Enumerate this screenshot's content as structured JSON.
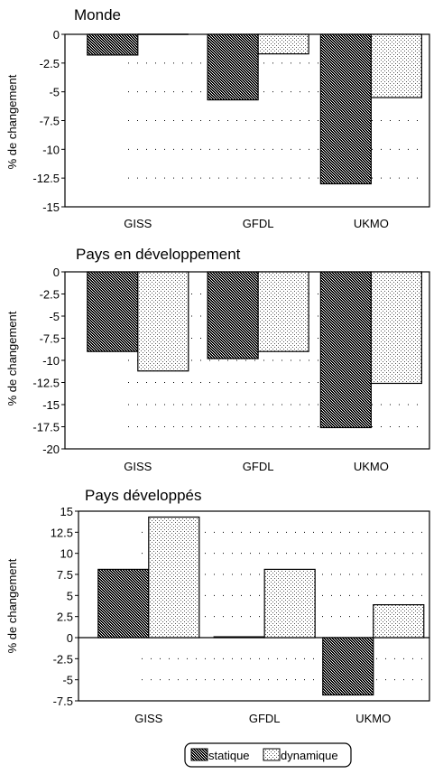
{
  "legend": {
    "series": [
      "statique",
      "dynamique"
    ],
    "placement": "bottom-center"
  },
  "chart_data": [
    {
      "type": "bar",
      "title": "Monde",
      "ylabel": "% de changement",
      "categories": [
        "GISS",
        "GFDL",
        "UKMO"
      ],
      "ylim": [
        -15,
        0
      ],
      "yticks": [
        "0",
        "-2.5",
        "-5",
        "-7.5",
        "-10",
        "-12.5",
        "-15"
      ],
      "series": [
        {
          "name": "statique",
          "values": [
            -1.8,
            -5.7,
            -13.0
          ]
        },
        {
          "name": "dynamique",
          "values": [
            0.0,
            -1.7,
            -5.5
          ]
        }
      ]
    },
    {
      "type": "bar",
      "title": "Pays en développement",
      "ylabel": "% de changement",
      "categories": [
        "GISS",
        "GFDL",
        "UKMO"
      ],
      "ylim": [
        -20,
        0
      ],
      "yticks": [
        "0",
        "-2.5",
        "-5",
        "-7.5",
        "-10",
        "-12.5",
        "-15",
        "-17.5",
        "-20"
      ],
      "series": [
        {
          "name": "statique",
          "values": [
            -9.0,
            -9.8,
            -17.6
          ]
        },
        {
          "name": "dynamique",
          "values": [
            -11.2,
            -9.0,
            -12.6
          ]
        }
      ]
    },
    {
      "type": "bar",
      "title": "Pays développés",
      "ylabel": "% de changement",
      "categories": [
        "GISS",
        "GFDL",
        "UKMO"
      ],
      "ylim": [
        -7.5,
        15
      ],
      "yticks": [
        "15",
        "12.5",
        "10",
        "7.5",
        "5",
        "2.5",
        "0",
        "-2.5",
        "-5",
        "-7.5"
      ],
      "series": [
        {
          "name": "statique",
          "values": [
            8.1,
            0.1,
            -6.8
          ]
        },
        {
          "name": "dynamique",
          "values": [
            14.3,
            8.1,
            3.9
          ]
        }
      ]
    }
  ]
}
